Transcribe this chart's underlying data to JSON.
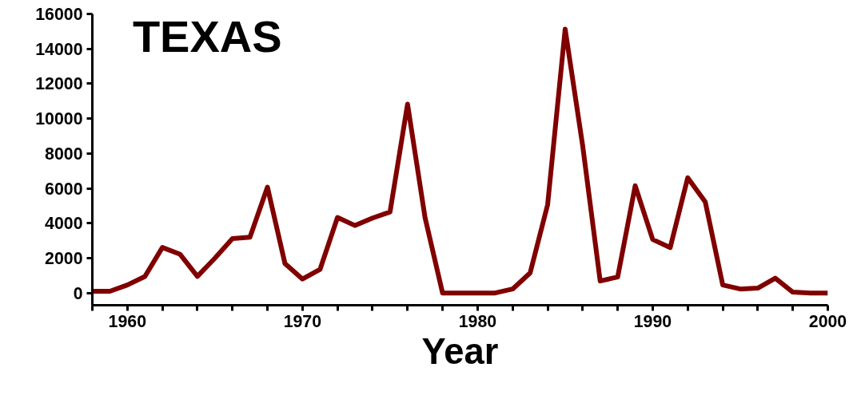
{
  "chart_data": {
    "type": "line",
    "title": "TEXAS",
    "xlabel": "Year",
    "x": [
      1958,
      1959,
      1960,
      1961,
      1962,
      1963,
      1964,
      1965,
      1966,
      1967,
      1968,
      1969,
      1970,
      1971,
      1972,
      1973,
      1974,
      1975,
      1976,
      1977,
      1978,
      1979,
      1980,
      1981,
      1982,
      1983,
      1984,
      1985,
      1986,
      1987,
      1988,
      1989,
      1990,
      1991,
      1992,
      1993,
      1994,
      1995,
      1996,
      1997,
      1998,
      1999,
      2000
    ],
    "series": [
      {
        "color": "#800000",
        "values": [
          100,
          100,
          460,
          950,
          2610,
          2230,
          950,
          2000,
          3120,
          3200,
          6070,
          1690,
          800,
          1350,
          4330,
          3870,
          4300,
          4650,
          10830,
          4320,
          0,
          0,
          0,
          0,
          230,
          1150,
          5070,
          15130,
          8450,
          690,
          920,
          6150,
          3070,
          2610,
          6610,
          5230,
          460,
          230,
          280,
          850,
          50,
          0,
          0
        ]
      }
    ],
    "xlim": [
      1958,
      2000
    ],
    "xticks": [
      {
        "value": 1958,
        "label": null
      },
      1960,
      {
        "value": 1962,
        "label": null
      },
      {
        "value": 1964,
        "label": null
      },
      {
        "value": 1966,
        "label": null
      },
      {
        "value": 1968,
        "label": null
      },
      1970,
      {
        "value": 1972,
        "label": null
      },
      {
        "value": 1974,
        "label": null
      },
      {
        "value": 1976,
        "label": null
      },
      {
        "value": 1978,
        "label": null
      },
      1980,
      {
        "value": 1982,
        "label": null
      },
      {
        "value": 1984,
        "label": null
      },
      {
        "value": 1986,
        "label": null
      },
      {
        "value": 1988,
        "label": null
      },
      1990,
      {
        "value": 1992,
        "label": null
      },
      {
        "value": 1994,
        "label": null
      },
      {
        "value": 1996,
        "label": null
      },
      {
        "value": 1998,
        "label": null
      },
      2000
    ],
    "ylim": [
      -700,
      16000
    ],
    "yticks": [
      0,
      2000,
      4000,
      6000,
      8000,
      10000,
      12000,
      14000,
      16000
    ],
    "grid": false,
    "marker": "none",
    "line_style": "solid"
  }
}
